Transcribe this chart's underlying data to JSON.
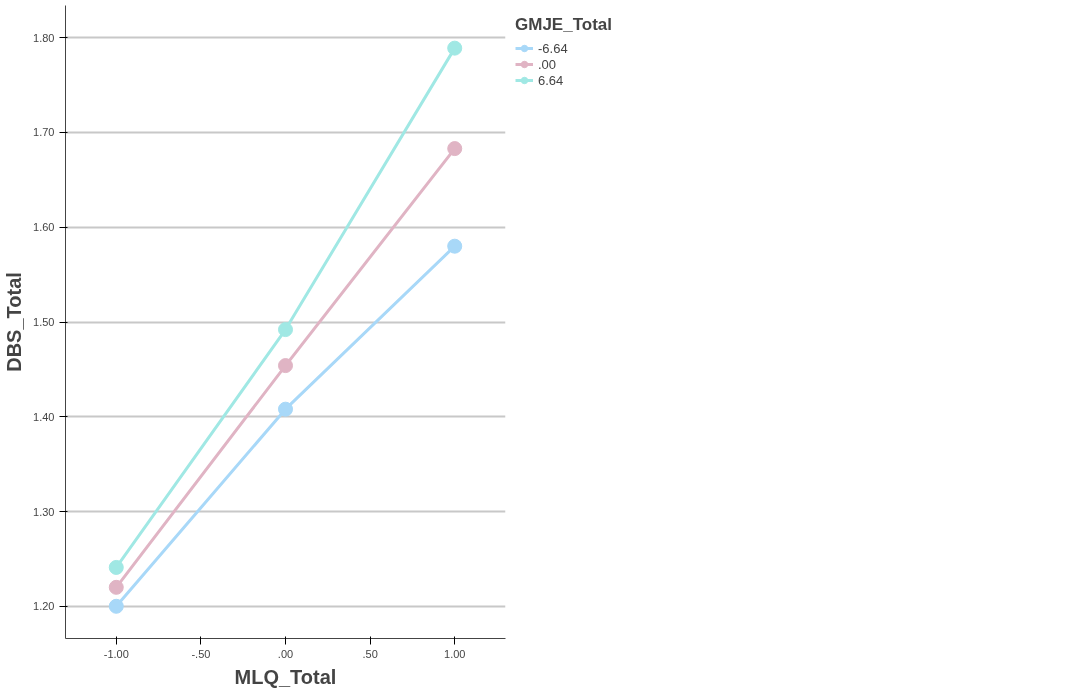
{
  "chart_data": {
    "type": "line",
    "xlabel": "MLQ_Total",
    "ylabel": "DBS_Total",
    "legend_title": "GMJE_Total",
    "x": [
      -1,
      0,
      1
    ],
    "series": [
      {
        "name": "-6.64",
        "color": "#a8d8f8",
        "values": [
          1.2,
          1.408,
          1.58
        ]
      },
      {
        "name": ".00",
        "color": "#e0b4c4",
        "values": [
          1.22,
          1.454,
          1.683
        ]
      },
      {
        "name": "6.64",
        "color": "#a0e8e4",
        "values": [
          1.241,
          1.492,
          1.789
        ]
      }
    ],
    "xlim": [
      -1.3,
      1.3
    ],
    "ylim": [
      1.166,
      1.834
    ],
    "xticks": [
      {
        "value": -1,
        "label": "-1.00"
      },
      {
        "value": -0.5,
        "label": "-.50"
      },
      {
        "value": 0,
        "label": ".00"
      },
      {
        "value": 0.5,
        "label": ".50"
      },
      {
        "value": 1,
        "label": "1.00"
      }
    ],
    "yticks": [
      {
        "value": 1.2,
        "label": "1.20"
      },
      {
        "value": 1.3,
        "label": "1.30"
      },
      {
        "value": 1.4,
        "label": "1.40"
      },
      {
        "value": 1.5,
        "label": "1.50"
      },
      {
        "value": 1.6,
        "label": "1.60"
      },
      {
        "value": 1.7,
        "label": "1.70"
      },
      {
        "value": 1.8,
        "label": "1.80"
      }
    ],
    "grid": "y",
    "legend": "top right",
    "marker": "circle",
    "line_style": "solid"
  }
}
